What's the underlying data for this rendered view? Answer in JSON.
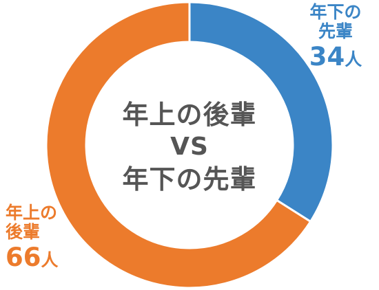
{
  "colors": {
    "seniors_younger": "#3b85c6",
    "juniors_older": "#ec7b2c",
    "center_text": "#555555",
    "background": "#ffffff"
  },
  "center": {
    "line1": "年上の後輩",
    "line2": "VS",
    "line3": "年下の先輩"
  },
  "chart_data": {
    "type": "pie",
    "donut": true,
    "categories": [
      "年下の先輩",
      "年上の後輩"
    ],
    "values": [
      34,
      66
    ],
    "unit": "人",
    "colors": [
      "#3b85c6",
      "#ec7b2c"
    ],
    "labels": [
      {
        "name_line1": "年下の",
        "name_line2": "先輩",
        "value": "34",
        "unit": "人"
      },
      {
        "name_line1": "年上の",
        "name_line2": "後輩",
        "value": "66",
        "unit": "人"
      }
    ]
  }
}
